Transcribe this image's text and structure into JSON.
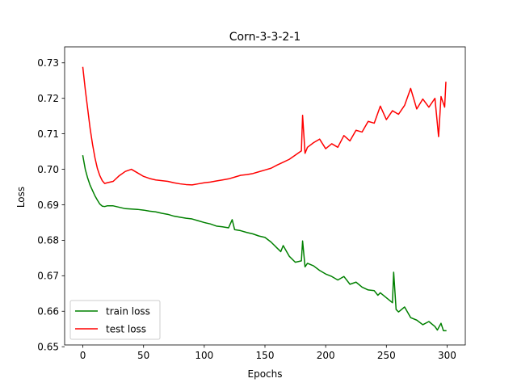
{
  "chart_data": {
    "type": "line",
    "title": "Corn-3-3-2-1",
    "xlabel": "Epochs",
    "ylabel": "Loss",
    "xlim": [
      -15,
      315
    ],
    "ylim": [
      0.6505,
      0.7345
    ],
    "x_ticks": [
      0,
      50,
      100,
      150,
      200,
      250,
      300
    ],
    "y_ticks": [
      0.65,
      0.66,
      0.67,
      0.68,
      0.69,
      0.7,
      0.71,
      0.72,
      0.73
    ],
    "x_tick_labels": [
      "0",
      "50",
      "100",
      "150",
      "200",
      "250",
      "300"
    ],
    "y_tick_labels": [
      "0.65",
      "0.66",
      "0.67",
      "0.68",
      "0.69",
      "0.70",
      "0.71",
      "0.72",
      "0.73"
    ],
    "grid": false,
    "legend_position": "lower-left",
    "series": [
      {
        "name": "train loss",
        "color": "#008000",
        "x": [
          0,
          2,
          4,
          6,
          8,
          10,
          12,
          14,
          16,
          18,
          20,
          25,
          30,
          35,
          40,
          45,
          50,
          55,
          60,
          65,
          70,
          75,
          80,
          85,
          90,
          95,
          100,
          105,
          110,
          115,
          120,
          123,
          125,
          130,
          135,
          140,
          145,
          150,
          155,
          160,
          163,
          165,
          170,
          175,
          180,
          181,
          183,
          185,
          190,
          195,
          200,
          205,
          210,
          215,
          220,
          225,
          230,
          235,
          240,
          243,
          245,
          250,
          255,
          256,
          258,
          260,
          265,
          270,
          275,
          280,
          285,
          290,
          292,
          295,
          297,
          299
        ],
        "y": [
          0.7038,
          0.7,
          0.6975,
          0.6955,
          0.694,
          0.6925,
          0.6913,
          0.6902,
          0.6896,
          0.6895,
          0.6897,
          0.6897,
          0.6893,
          0.6889,
          0.6888,
          0.6887,
          0.6885,
          0.6882,
          0.688,
          0.6876,
          0.6873,
          0.6868,
          0.6865,
          0.6862,
          0.686,
          0.6855,
          0.685,
          0.6846,
          0.684,
          0.6838,
          0.6835,
          0.6858,
          0.683,
          0.6827,
          0.6822,
          0.6818,
          0.6812,
          0.6808,
          0.6795,
          0.6778,
          0.6768,
          0.6785,
          0.6755,
          0.6738,
          0.6742,
          0.6798,
          0.6725,
          0.6735,
          0.6728,
          0.6715,
          0.6705,
          0.6698,
          0.6688,
          0.6698,
          0.6676,
          0.6682,
          0.6668,
          0.666,
          0.6658,
          0.6645,
          0.6652,
          0.6638,
          0.6624,
          0.671,
          0.6605,
          0.6598,
          0.6612,
          0.6582,
          0.6575,
          0.6562,
          0.6571,
          0.6557,
          0.6547,
          0.6566,
          0.6545,
          0.6545
        ]
      },
      {
        "name": "test loss",
        "color": "#ff0000",
        "x": [
          0,
          2,
          4,
          6,
          8,
          10,
          12,
          14,
          16,
          18,
          20,
          25,
          30,
          35,
          40,
          45,
          50,
          55,
          60,
          65,
          70,
          75,
          80,
          85,
          90,
          95,
          100,
          105,
          110,
          115,
          120,
          125,
          130,
          135,
          140,
          145,
          150,
          155,
          160,
          165,
          170,
          175,
          180,
          181,
          183,
          185,
          190,
          195,
          200,
          205,
          210,
          215,
          220,
          225,
          230,
          235,
          240,
          245,
          250,
          255,
          260,
          265,
          270,
          275,
          280,
          285,
          290,
          293,
          295,
          298,
          299
        ],
        "y": [
          0.7287,
          0.7225,
          0.717,
          0.7115,
          0.707,
          0.7032,
          0.7002,
          0.6982,
          0.6968,
          0.696,
          0.6962,
          0.6966,
          0.6982,
          0.6994,
          0.7,
          0.699,
          0.698,
          0.6974,
          0.697,
          0.6968,
          0.6966,
          0.6962,
          0.6959,
          0.6957,
          0.6956,
          0.6959,
          0.6962,
          0.6964,
          0.6967,
          0.697,
          0.6973,
          0.6978,
          0.6983,
          0.6985,
          0.6988,
          0.6993,
          0.6998,
          0.7003,
          0.7012,
          0.702,
          0.7028,
          0.704,
          0.7052,
          0.7152,
          0.7045,
          0.7062,
          0.7075,
          0.7085,
          0.7058,
          0.7072,
          0.7062,
          0.7095,
          0.708,
          0.711,
          0.7105,
          0.7135,
          0.713,
          0.7178,
          0.714,
          0.7165,
          0.7155,
          0.718,
          0.7228,
          0.717,
          0.7198,
          0.7175,
          0.72,
          0.7092,
          0.7205,
          0.7175,
          0.7245
        ]
      }
    ]
  }
}
